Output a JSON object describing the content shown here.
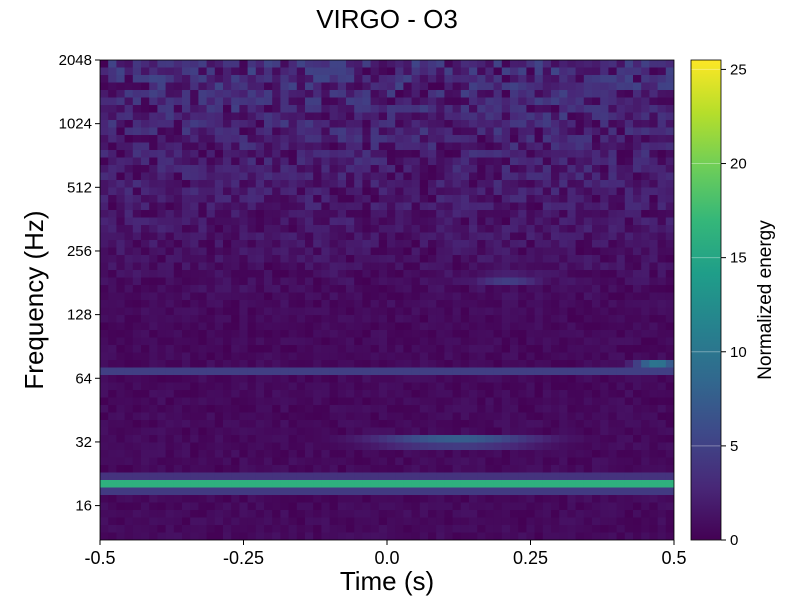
{
  "chart_data": {
    "type": "heatmap",
    "title": "VIRGO - O3",
    "xlabel": "Time (s)",
    "ylabel": "Frequency (Hz)",
    "xlim": [
      -0.5,
      0.5
    ],
    "ylim": [
      11,
      2048
    ],
    "y_scale": "log2",
    "x_ticks": [
      {
        "value": -0.5,
        "label": "-0.5"
      },
      {
        "value": -0.25,
        "label": "-0.25"
      },
      {
        "value": 0.0,
        "label": "0.0"
      },
      {
        "value": 0.25,
        "label": "0.25"
      },
      {
        "value": 0.5,
        "label": "0.5"
      }
    ],
    "y_ticks": [
      {
        "value": 16,
        "label": "16"
      },
      {
        "value": 32,
        "label": "32"
      },
      {
        "value": 64,
        "label": "64"
      },
      {
        "value": 128,
        "label": "128"
      },
      {
        "value": 256,
        "label": "256"
      },
      {
        "value": 512,
        "label": "512"
      },
      {
        "value": 1024,
        "label": "1024"
      },
      {
        "value": 2048,
        "label": "2048"
      }
    ],
    "colorbar": {
      "label": "Normalized energy",
      "range": [
        0,
        25.5
      ],
      "colormap": [
        "#440154",
        "#482878",
        "#3e4989",
        "#31688e",
        "#26828e",
        "#1f9e89",
        "#35b779",
        "#6ece58",
        "#b5de2b",
        "#fde725"
      ],
      "ticks": [
        {
          "value": 0,
          "label": "0"
        },
        {
          "value": 5,
          "label": "5"
        },
        {
          "value": 10,
          "label": "10"
        },
        {
          "value": 15,
          "label": "15"
        },
        {
          "value": 20,
          "label": "20"
        },
        {
          "value": 25,
          "label": "25"
        }
      ]
    },
    "features": [
      {
        "kind": "band",
        "freq": 20,
        "t_start": -0.5,
        "t_end": 0.5,
        "energy": 25
      },
      {
        "kind": "band",
        "freq": 21.5,
        "t_start": -0.5,
        "t_end": 0.5,
        "energy": 9
      },
      {
        "kind": "band",
        "freq": 18.5,
        "t_start": -0.5,
        "t_end": 0.5,
        "energy": 6
      },
      {
        "kind": "band",
        "freq": 13,
        "t_start": -0.5,
        "t_end": 0.5,
        "energy": 4
      },
      {
        "kind": "band",
        "freq": 69,
        "t_start": -0.5,
        "t_end": 0.5,
        "energy": 5
      },
      {
        "kind": "blob",
        "freq": 32,
        "t_center": 0.12,
        "t_width": 0.15,
        "energy": 14
      },
      {
        "kind": "blob",
        "freq": 75,
        "t_center": 0.47,
        "t_width": 0.04,
        "energy": 10
      },
      {
        "kind": "blob",
        "freq": 190,
        "t_center": 0.21,
        "t_width": 0.06,
        "energy": 8
      }
    ]
  }
}
